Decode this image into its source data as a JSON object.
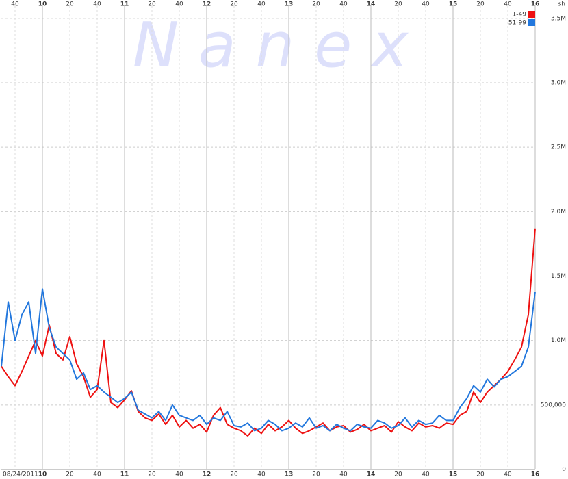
{
  "chart_data": {
    "type": "line",
    "watermark": "N a n e x",
    "unit": "sh",
    "date": "08/24/2011",
    "x": [
      570,
      575,
      580,
      585,
      590,
      595,
      600,
      605,
      610,
      615,
      620,
      625,
      630,
      635,
      640,
      645,
      650,
      655,
      660,
      665,
      670,
      675,
      680,
      685,
      690,
      695,
      700,
      705,
      710,
      715,
      720,
      725,
      730,
      735,
      740,
      745,
      750,
      755,
      760,
      765,
      770,
      775,
      780,
      785,
      790,
      795,
      800,
      805,
      810,
      815,
      820,
      825,
      830,
      835,
      840,
      845,
      850,
      855,
      860,
      865,
      870,
      875,
      880,
      885,
      890,
      895,
      900,
      905,
      910,
      915,
      920,
      925,
      930,
      935,
      940,
      945,
      950,
      955,
      960
    ],
    "series": [
      {
        "name": "1-49",
        "color": "#ee1111",
        "values": [
          800000,
          720000,
          650000,
          760000,
          880000,
          1000000,
          880000,
          1120000,
          900000,
          850000,
          1030000,
          820000,
          720000,
          560000,
          620000,
          1000000,
          520000,
          480000,
          540000,
          610000,
          450000,
          400000,
          380000,
          430000,
          350000,
          420000,
          330000,
          380000,
          320000,
          350000,
          290000,
          420000,
          480000,
          350000,
          320000,
          300000,
          260000,
          320000,
          280000,
          350000,
          300000,
          330000,
          380000,
          320000,
          280000,
          300000,
          330000,
          360000,
          300000,
          330000,
          340000,
          290000,
          310000,
          350000,
          300000,
          320000,
          340000,
          290000,
          370000,
          330000,
          300000,
          360000,
          330000,
          340000,
          320000,
          360000,
          350000,
          420000,
          450000,
          600000,
          520000,
          600000,
          650000,
          700000,
          760000,
          850000,
          950000,
          1200000,
          1870000
        ]
      },
      {
        "name": "51-99",
        "color": "#2277dd",
        "values": [
          800000,
          1300000,
          1000000,
          1200000,
          1300000,
          900000,
          1400000,
          1100000,
          950000,
          900000,
          850000,
          700000,
          750000,
          620000,
          650000,
          600000,
          560000,
          520000,
          550000,
          600000,
          460000,
          430000,
          400000,
          450000,
          380000,
          500000,
          420000,
          400000,
          380000,
          420000,
          350000,
          400000,
          380000,
          450000,
          340000,
          330000,
          360000,
          300000,
          320000,
          380000,
          350000,
          300000,
          320000,
          360000,
          330000,
          400000,
          320000,
          340000,
          300000,
          350000,
          320000,
          300000,
          350000,
          330000,
          320000,
          380000,
          360000,
          320000,
          340000,
          400000,
          330000,
          380000,
          350000,
          360000,
          420000,
          380000,
          380000,
          480000,
          550000,
          650000,
          600000,
          700000,
          640000,
          700000,
          720000,
          760000,
          800000,
          950000,
          1380000
        ]
      }
    ],
    "xlim": [
      570,
      960
    ],
    "xticks": [
      {
        "value": 580,
        "label": "40"
      },
      {
        "value": 600,
        "label": "10"
      },
      {
        "value": 620,
        "label": "20"
      },
      {
        "value": 640,
        "label": "40"
      },
      {
        "value": 660,
        "label": "11"
      },
      {
        "value": 680,
        "label": "20"
      },
      {
        "value": 700,
        "label": "40"
      },
      {
        "value": 720,
        "label": "12"
      },
      {
        "value": 740,
        "label": "20"
      },
      {
        "value": 760,
        "label": "40"
      },
      {
        "value": 780,
        "label": "13"
      },
      {
        "value": 800,
        "label": "20"
      },
      {
        "value": 820,
        "label": "40"
      },
      {
        "value": 840,
        "label": "14"
      },
      {
        "value": 860,
        "label": "20"
      },
      {
        "value": 880,
        "label": "40"
      },
      {
        "value": 900,
        "label": "15"
      },
      {
        "value": 920,
        "label": "20"
      },
      {
        "value": 940,
        "label": "40"
      },
      {
        "value": 960,
        "label": "16"
      }
    ],
    "ylim": [
      0,
      3600000
    ],
    "yticks": [
      0,
      {
        "value": 500000,
        "label": "500,000"
      },
      {
        "value": 1000000,
        "label": "1.0M"
      },
      {
        "value": 1500000,
        "label": "1.5M"
      },
      {
        "value": 2000000,
        "label": "2.0M"
      },
      {
        "value": 2500000,
        "label": "2.5M"
      },
      {
        "value": 3000000,
        "label": "3.0M"
      },
      {
        "value": 3500000,
        "label": "3.5M"
      }
    ],
    "grid": true
  }
}
